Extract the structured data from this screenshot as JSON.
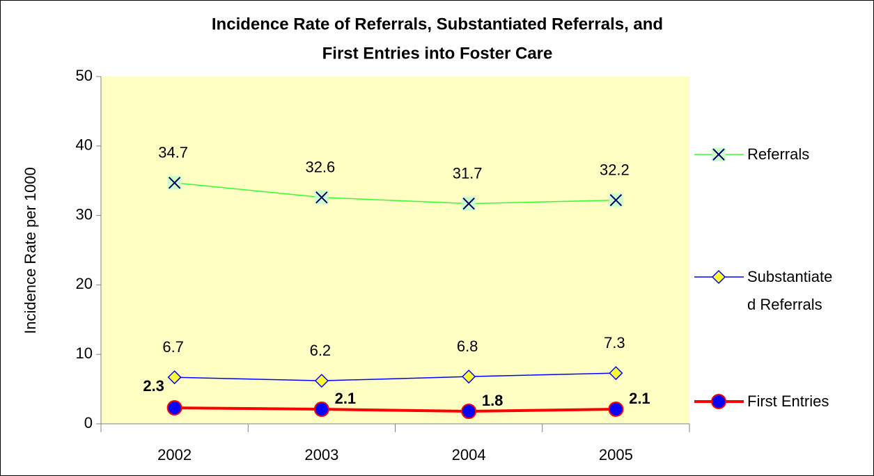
{
  "chart_data": {
    "type": "line",
    "title": [
      "Incidence Rate of Referrals, Substantiated Referrals, and",
      "First Entries into Foster Care"
    ],
    "y_label": "Incidence Rate per 1000",
    "categories": [
      "2002",
      "2003",
      "2004",
      "2005"
    ],
    "series": [
      {
        "name": "Referrals",
        "color": "#33ff33",
        "marker": "x",
        "marker_color": "#000066",
        "values": [
          34.7,
          32.6,
          31.7,
          32.2
        ]
      },
      {
        "name": "Substantiated Referrals",
        "color": "#0000ff",
        "marker": "diamond",
        "marker_color": "#ffff33",
        "values": [
          6.7,
          6.2,
          6.8,
          7.3
        ]
      },
      {
        "name": "First Entries",
        "color": "#ff0000",
        "marker": "circle",
        "marker_color": "#0000ff",
        "values": [
          2.3,
          2.1,
          1.8,
          2.1
        ]
      }
    ],
    "ylim": [
      0,
      50
    ],
    "yticks": [
      0,
      10,
      20,
      30,
      40,
      50
    ],
    "grid": false,
    "legend": "right",
    "plot_background": "#ffffc4"
  }
}
